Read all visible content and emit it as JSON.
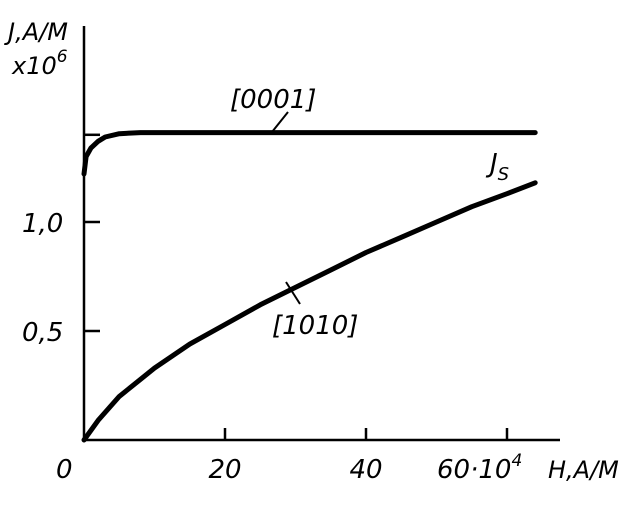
{
  "chart_data": {
    "type": "line",
    "xlabel": "H,A/M",
    "ylabel": "J,A/M",
    "ylabel_multiplier": "x10",
    "ylabel_multiplier_exp": "6",
    "x_unit_multiplier": "·10",
    "x_unit_multiplier_exp": "4",
    "xlim": [
      0,
      66
    ],
    "ylim": [
      0,
      1.5
    ],
    "x_ticks": [
      0,
      20,
      40,
      60
    ],
    "x_tick_labels": [
      "0",
      "20",
      "40",
      "60"
    ],
    "y_ticks": [
      0.5,
      1.0,
      1.4
    ],
    "y_tick_labels": [
      "0,5",
      "1,0",
      ""
    ],
    "grid": false,
    "series": [
      {
        "name": "[0001]",
        "x": [
          0,
          0.3,
          1,
          2,
          3,
          5,
          8,
          12,
          20,
          40,
          64
        ],
        "y": [
          1.22,
          1.3,
          1.34,
          1.37,
          1.39,
          1.405,
          1.41,
          1.41,
          1.41,
          1.41,
          1.41
        ]
      },
      {
        "name": "[1010]",
        "x": [
          0,
          2,
          5,
          10,
          15,
          20,
          25,
          30,
          35,
          40,
          45,
          50,
          55,
          60,
          64
        ],
        "y": [
          0,
          0.09,
          0.2,
          0.33,
          0.44,
          0.53,
          0.62,
          0.7,
          0.78,
          0.86,
          0.93,
          1.0,
          1.07,
          1.13,
          1.18
        ]
      }
    ],
    "annotations": [
      {
        "text": "J",
        "subscript": "S"
      }
    ]
  }
}
